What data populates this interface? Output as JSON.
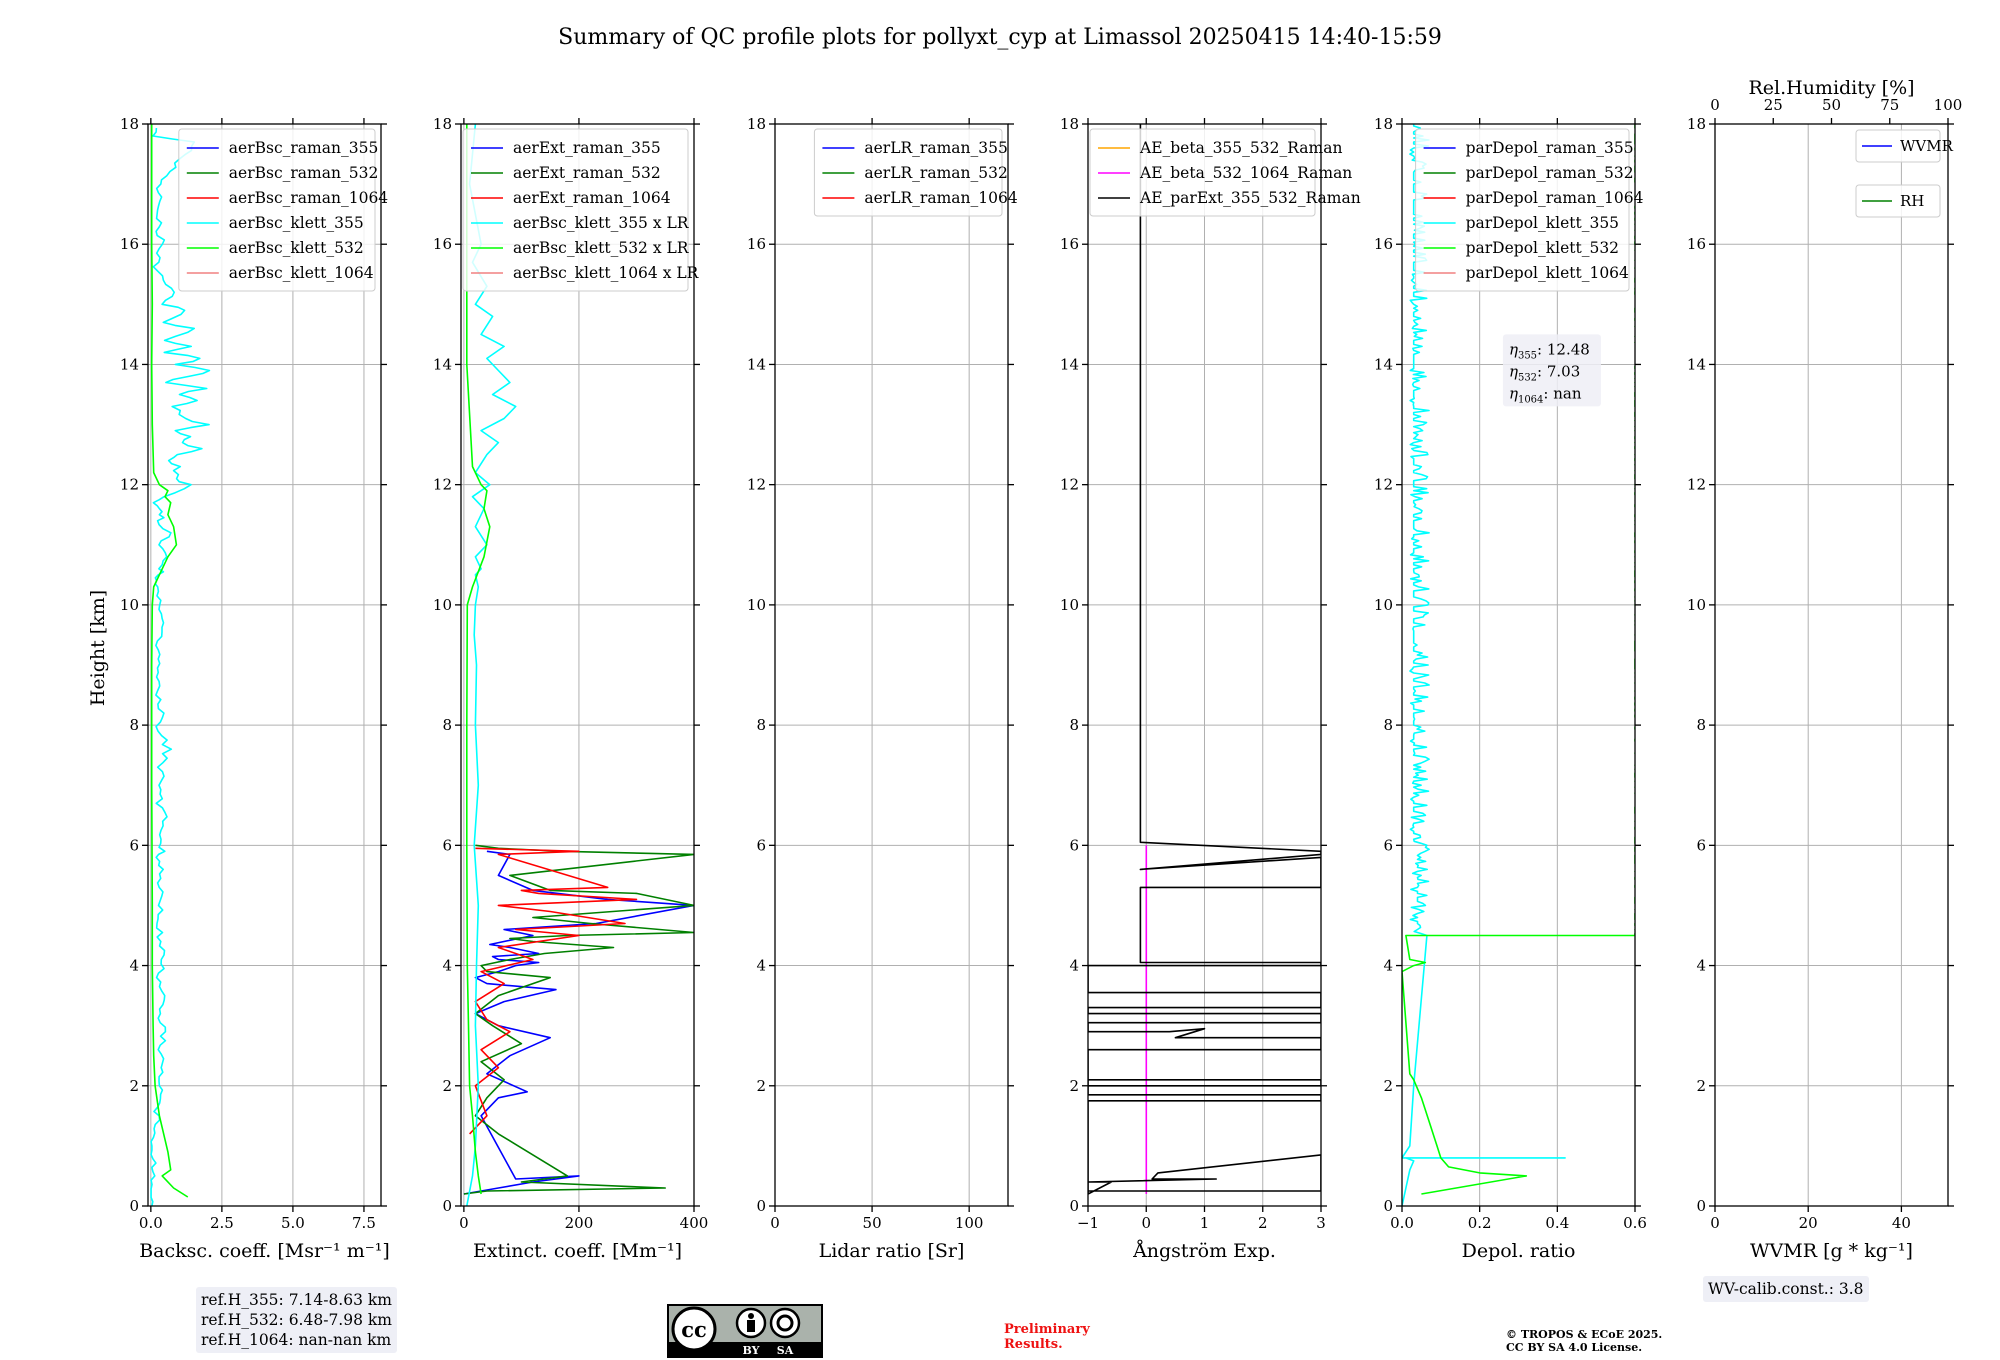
{
  "figure": {
    "title": "Summary of QC profile plots for pollyxt_cyp at Limassol 20250415 14:40-15:59",
    "ylabel": "Height [km]"
  },
  "chart_data": [
    {
      "id": "backscatter",
      "type": "line",
      "xlabel": "Backsc. coeff. [Msr⁻¹ m⁻¹]",
      "xlim": [
        -0.1,
        8.1
      ],
      "xticks": [
        0.0,
        2.5,
        5.0,
        7.5
      ],
      "xtick_labels": [
        "0.0",
        "2.5",
        "5.0",
        "7.5"
      ],
      "ylim": [
        0,
        18
      ],
      "yticks": [
        0,
        2,
        4,
        6,
        8,
        10,
        12,
        14,
        16,
        18
      ],
      "grid": true,
      "legend_position": "top-right",
      "series": [
        {
          "name": "aerBsc_raman_355",
          "color": "#0000ff",
          "x": [],
          "y": []
        },
        {
          "name": "aerBsc_raman_532",
          "color": "#008000",
          "x": [],
          "y": []
        },
        {
          "name": "aerBsc_raman_1064",
          "color": "#ff0000",
          "x": [],
          "y": []
        },
        {
          "name": "aerBsc_klett_355",
          "color": "#00ffff",
          "style": "noisy",
          "x": [
            0.02,
            0.05,
            0.1,
            0.3,
            0.3,
            0.35,
            0.4,
            0.3,
            0.45,
            0.3,
            0.4,
            0.35,
            0.3,
            0.4,
            0.3,
            0.35,
            0.3,
            0.4,
            0.3,
            0.5,
            0.3,
            0.4,
            0.3,
            0.6,
            0.3,
            0.4,
            0.3,
            0.2,
            0.3,
            0.2,
            0.4,
            0.2,
            0.3,
            0.2,
            0.4,
            0.2,
            0.5,
            0.3,
            0.6,
            0.3,
            0.4,
            0.3,
            0.2,
            0.6,
            1.3,
            0.8,
            1.0,
            0.5,
            0.9,
            1.8,
            1.0,
            1.5,
            0.8,
            2.0,
            1.2,
            0.8,
            1.7,
            0.9,
            1.9,
            0.6,
            1.2,
            2.2,
            1.0,
            1.7,
            0.6,
            1.4,
            0.5,
            1.5,
            0.4,
            1.3,
            0.4,
            0.8,
            0.3,
            0.2,
            0.4,
            0.2,
            0.3,
            1.6,
            0.2,
            0.3
          ],
          "y": [
            0.0,
            0.5,
            1.0,
            2.0,
            2.3,
            2.6,
            2.9,
            3.2,
            3.5,
            3.8,
            4.1,
            4.4,
            4.7,
            5.0,
            5.3,
            5.6,
            5.8,
            5.9,
            6.1,
            6.4,
            6.7,
            7.0,
            7.3,
            7.6,
            7.9,
            8.2,
            8.5,
            8.8,
            9.1,
            9.4,
            9.7,
            10.0,
            10.3,
            10.4,
            10.5,
            10.6,
            10.8,
            11.0,
            11.2,
            11.4,
            11.5,
            11.6,
            11.7,
            11.8,
            12.0,
            12.1,
            12.3,
            12.4,
            12.5,
            12.6,
            12.7,
            12.8,
            12.9,
            13.0,
            13.1,
            13.3,
            13.4,
            13.5,
            13.6,
            13.7,
            13.8,
            13.9,
            14.0,
            14.1,
            14.2,
            14.3,
            14.4,
            14.6,
            14.7,
            14.9,
            15.0,
            15.2,
            15.4,
            15.7,
            16.0,
            16.5,
            17.0,
            17.7,
            17.8,
            18.0
          ]
        },
        {
          "name": "aerBsc_klett_532",
          "color": "#00ff00",
          "x": [
            1.3,
            0.8,
            0.4,
            0.7,
            0.6,
            0.3,
            0.15,
            0.1,
            0.08,
            0.05,
            0.05,
            0.04,
            0.03,
            0.03,
            0.03,
            0.05,
            0.1,
            0.3,
            0.6,
            0.9,
            0.8,
            0.6,
            0.7,
            0.5,
            0.6,
            0.3,
            0.1,
            0.05,
            0.03,
            0.05,
            0.03,
            0.03
          ],
          "y": [
            0.15,
            0.3,
            0.5,
            0.6,
            0.9,
            1.5,
            2.0,
            2.5,
            3.0,
            4.0,
            5.0,
            6.0,
            7.0,
            8.0,
            9.0,
            10.0,
            10.3,
            10.5,
            10.8,
            11.0,
            11.3,
            11.5,
            11.7,
            11.8,
            11.9,
            12.0,
            12.2,
            13.0,
            14.0,
            15.0,
            16.0,
            18.0
          ]
        },
        {
          "name": "aerBsc_klett_1064",
          "color": "#f08080",
          "x": [],
          "y": []
        }
      ]
    },
    {
      "id": "extinction",
      "type": "line",
      "xlabel": "Extinct. coeff. [Mm⁻¹]",
      "xlim": [
        -5,
        400
      ],
      "xticks": [
        0,
        200,
        400
      ],
      "xtick_labels": [
        "0",
        "200",
        "400"
      ],
      "ylim": [
        0,
        18
      ],
      "yticks": [
        0,
        2,
        4,
        6,
        8,
        10,
        12,
        14,
        16,
        18
      ],
      "grid": true,
      "legend_position": "top-right",
      "series": [
        {
          "name": "aerExt_raman_355",
          "color": "#0000ff",
          "x": [
            0,
            60,
            120,
            200,
            90,
            30,
            60,
            110,
            40,
            80,
            150,
            60,
            20,
            70,
            160,
            40,
            20,
            60,
            90,
            130,
            60,
            50,
            130,
            80,
            45,
            120,
            70,
            230,
            400,
            250,
            120,
            60,
            80,
            40
          ],
          "y": [
            0.2,
            0.3,
            0.4,
            0.5,
            0.45,
            1.5,
            1.8,
            1.9,
            2.2,
            2.5,
            2.8,
            3.0,
            3.2,
            3.4,
            3.6,
            3.7,
            3.8,
            3.9,
            4.0,
            4.05,
            4.1,
            4.15,
            4.2,
            4.3,
            4.35,
            4.5,
            4.6,
            4.7,
            5.0,
            5.1,
            5.25,
            5.5,
            5.85,
            5.9
          ]
        },
        {
          "name": "aerExt_raman_532",
          "color": "#008000",
          "x": [
            0,
            40,
            350,
            100,
            180,
            60,
            20,
            40,
            70,
            30,
            100,
            50,
            20,
            60,
            150,
            40,
            30,
            80,
            140,
            260,
            120,
            80,
            180,
            400,
            220,
            120,
            400,
            300,
            150,
            80,
            400,
            170,
            60,
            20
          ],
          "y": [
            0.2,
            0.25,
            0.3,
            0.4,
            0.5,
            1.2,
            1.5,
            1.8,
            2.1,
            2.4,
            2.7,
            3.0,
            3.2,
            3.5,
            3.8,
            3.9,
            4.0,
            4.1,
            4.2,
            4.3,
            4.4,
            4.45,
            4.5,
            4.55,
            4.7,
            4.8,
            5.0,
            5.2,
            5.25,
            5.5,
            5.85,
            5.9,
            5.95,
            6.0
          ]
        },
        {
          "name": "aerExt_raman_1064",
          "color": "#ff0000",
          "x": [
            10,
            40,
            20,
            60,
            30,
            80,
            40,
            20,
            70,
            30,
            120,
            60,
            200,
            90,
            280,
            150,
            60,
            300,
            130,
            100,
            250,
            60,
            200,
            20
          ],
          "y": [
            1.2,
            1.5,
            2.0,
            2.3,
            2.6,
            2.9,
            3.1,
            3.4,
            3.7,
            3.9,
            4.1,
            4.3,
            4.5,
            4.6,
            4.7,
            4.9,
            5.0,
            5.1,
            5.2,
            5.25,
            5.3,
            5.85,
            5.9,
            5.95
          ]
        },
        {
          "name": "aerBsc_klett_355 x LR",
          "color": "#00ffff",
          "x": [
            5,
            15,
            20,
            25,
            20,
            22,
            25,
            18,
            25,
            20,
            22,
            18,
            20,
            25,
            20,
            30,
            20,
            40,
            20,
            35,
            15,
            30,
            45,
            20,
            40,
            60,
            30,
            70,
            90,
            50,
            80,
            60,
            40,
            70,
            30,
            50,
            20,
            40,
            15,
            30,
            10,
            20
          ],
          "y": [
            0.0,
            0.5,
            1.0,
            2.0,
            3.0,
            4.0,
            5.0,
            6.0,
            7.0,
            8.0,
            9.0,
            9.5,
            10.0,
            10.3,
            10.5,
            10.6,
            10.8,
            11.0,
            11.3,
            11.6,
            11.8,
            11.9,
            12.0,
            12.2,
            12.5,
            12.7,
            12.9,
            13.1,
            13.3,
            13.5,
            13.7,
            13.9,
            14.1,
            14.3,
            14.5,
            14.8,
            15.0,
            15.3,
            15.7,
            16.0,
            17.0,
            18.0
          ]
        },
        {
          "name": "aerBsc_klett_532 x LR",
          "color": "#00ff00",
          "x": [
            30,
            25,
            20,
            15,
            10,
            8,
            6,
            5,
            5,
            6,
            15,
            35,
            45,
            35,
            40,
            30,
            15,
            5,
            5,
            5
          ],
          "y": [
            0.2,
            0.5,
            0.9,
            1.5,
            2.0,
            3.0,
            4.0,
            6.0,
            8.0,
            10.0,
            10.3,
            10.8,
            11.3,
            11.6,
            11.9,
            12.0,
            12.3,
            14.0,
            16.0,
            18.0
          ]
        },
        {
          "name": "aerBsc_klett_1064 x LR",
          "color": "#f08080",
          "x": [],
          "y": []
        }
      ]
    },
    {
      "id": "lidar_ratio",
      "type": "line",
      "xlabel": "Lidar ratio [Sr]",
      "xlim": [
        0,
        120
      ],
      "xticks": [
        0,
        50,
        100
      ],
      "xtick_labels": [
        "0",
        "50",
        "100"
      ],
      "ylim": [
        0,
        18
      ],
      "yticks": [
        0,
        2,
        4,
        6,
        8,
        10,
        12,
        14,
        16,
        18
      ],
      "grid": true,
      "legend_position": "top-right",
      "series": [
        {
          "name": "aerLR_raman_355",
          "color": "#0000ff",
          "x": [],
          "y": []
        },
        {
          "name": "aerLR_raman_532",
          "color": "#008000",
          "x": [],
          "y": []
        },
        {
          "name": "aerLR_raman_1064",
          "color": "#ff0000",
          "x": [],
          "y": []
        }
      ]
    },
    {
      "id": "angstrom",
      "type": "line",
      "xlabel": "Ångström Exp.",
      "xlim": [
        -1,
        3
      ],
      "xticks": [
        -1,
        0,
        1,
        2,
        3
      ],
      "xtick_labels": [
        "−1",
        "0",
        "1",
        "2",
        "3"
      ],
      "ylim": [
        0,
        18
      ],
      "yticks": [
        0,
        2,
        4,
        6,
        8,
        10,
        12,
        14,
        16,
        18
      ],
      "grid": true,
      "legend_position": "top-right",
      "series": [
        {
          "name": "AE_beta_355_532_Raman",
          "color": "#ffa500",
          "x": [],
          "y": []
        },
        {
          "name": "AE_beta_532_1064_Raman",
          "color": "#ff00ff",
          "x": [
            0,
            0
          ],
          "y": [
            0.2,
            6.0
          ]
        },
        {
          "name": "AE_parExt_355_532_Raman",
          "color": "#000000",
          "x": [
            -1,
            3,
            3,
            0.2,
            0.1,
            1.2,
            -1,
            -0.6,
            -1,
            -1,
            3,
            3,
            -1,
            -1,
            3,
            3,
            -1,
            -1,
            -0.3,
            3,
            3,
            0.5,
            1.0,
            0.4,
            -1,
            -1,
            3,
            3,
            -1,
            -1,
            3,
            3,
            -1,
            -1,
            3,
            3,
            -0.1,
            -0.1,
            3,
            3,
            -0.1,
            -0.1,
            3,
            3,
            -0.1,
            -0.1
          ],
          "y": [
            0.25,
            0.25,
            0.85,
            0.55,
            0.45,
            0.45,
            0.4,
            0.4,
            0.2,
            1.75,
            1.75,
            1.85,
            1.85,
            2.1,
            2.1,
            2.0,
            2.0,
            2.6,
            2.6,
            2.6,
            2.8,
            2.8,
            2.95,
            2.9,
            2.9,
            3.05,
            3.05,
            3.2,
            3.2,
            3.3,
            3.3,
            3.55,
            3.55,
            4.0,
            4.0,
            4.05,
            4.05,
            5.3,
            5.3,
            5.8,
            5.6,
            5.6,
            5.85,
            5.9,
            6.05,
            18.0
          ]
        }
      ]
    },
    {
      "id": "depol",
      "type": "line",
      "xlabel": "Depol. ratio",
      "xlim": [
        0,
        0.6
      ],
      "xticks": [
        0.0,
        0.2,
        0.4,
        0.6
      ],
      "xtick_labels": [
        "0.0",
        "0.2",
        "0.4",
        "0.6"
      ],
      "ylim": [
        0,
        18
      ],
      "yticks": [
        0,
        2,
        4,
        6,
        8,
        10,
        12,
        14,
        16,
        18
      ],
      "grid": true,
      "legend_position": "top-right",
      "annotation": {
        "eta_355": "12.48",
        "eta_532": "7.03",
        "eta_1064": "nan"
      },
      "series": [
        {
          "name": "parDepol_raman_355",
          "color": "#0000ff",
          "x": [],
          "y": []
        },
        {
          "name": "parDepol_raman_532",
          "color": "#008000",
          "x": [],
          "y": []
        },
        {
          "name": "parDepol_raman_1064",
          "color": "#ff0000",
          "x": [],
          "y": []
        },
        {
          "name": "parDepol_klett_355",
          "color": "#00ffff",
          "style": "oscillating",
          "x": [
            0.0,
            0.01,
            0.02,
            0.03,
            0.01,
            0.42,
            0.0,
            0.02,
            0.03,
            0.04,
            0.02,
            0.03
          ],
          "y": [
            0.0,
            0.3,
            0.6,
            0.75,
            0.8,
            0.8,
            0.8,
            1.0,
            2.0,
            4.5,
            6.0,
            18.0
          ]
        },
        {
          "name": "parDepol_klett_532",
          "color": "#00ff00",
          "style": "oscillating",
          "x": [
            0.05,
            0.32,
            0.2,
            0.12,
            0.1,
            0.09,
            0.07,
            0.05,
            0.03,
            0.02,
            0.0,
            0.03,
            0.06,
            0.02,
            0.01,
            0.6,
            0.6
          ],
          "y": [
            0.2,
            0.5,
            0.55,
            0.65,
            0.8,
            1.0,
            1.4,
            1.8,
            2.1,
            2.2,
            3.9,
            4.0,
            4.05,
            4.1,
            4.5,
            4.5,
            18.0
          ]
        },
        {
          "name": "parDepol_klett_1064",
          "color": "#f08080",
          "x": [],
          "y": []
        }
      ]
    },
    {
      "id": "wvmr",
      "type": "line",
      "xlabel": "WVMR [g * kg⁻¹]",
      "xlim": [
        0,
        50
      ],
      "xticks": [
        0,
        20,
        40
      ],
      "xtick_labels": [
        "0",
        "20",
        "40"
      ],
      "top_xlabel": "Rel.Humidity [%]",
      "top_xlim": [
        0,
        100
      ],
      "top_xticks": [
        0,
        25,
        50,
        75,
        100
      ],
      "top_xtick_labels": [
        "0",
        "25",
        "50",
        "75",
        "100"
      ],
      "ylim": [
        0,
        18
      ],
      "yticks": [
        0,
        2,
        4,
        6,
        8,
        10,
        12,
        14,
        16,
        18
      ],
      "grid": true,
      "legend_position": "top-right",
      "series": [
        {
          "name": "WVMR",
          "color": "#0000ff",
          "x": [],
          "y": []
        },
        {
          "name": "RH",
          "color": "#008000",
          "x": [],
          "y": []
        }
      ]
    }
  ],
  "footer": {
    "ref_lines": [
      "ref.H_355: 7.14-8.63 km",
      "ref.H_532: 6.48-7.98 km",
      "ref.H_1064: nan-nan km"
    ],
    "wv_calib": "WV-calib.const.: 3.8",
    "license_badge": {
      "cc": "cc",
      "by": "BY",
      "sa": "SA"
    },
    "preliminary": [
      "Preliminary",
      "Results."
    ],
    "copyright": [
      "© TROPOS & ECoE 2025.",
      "CC BY SA 4.0 License."
    ]
  }
}
